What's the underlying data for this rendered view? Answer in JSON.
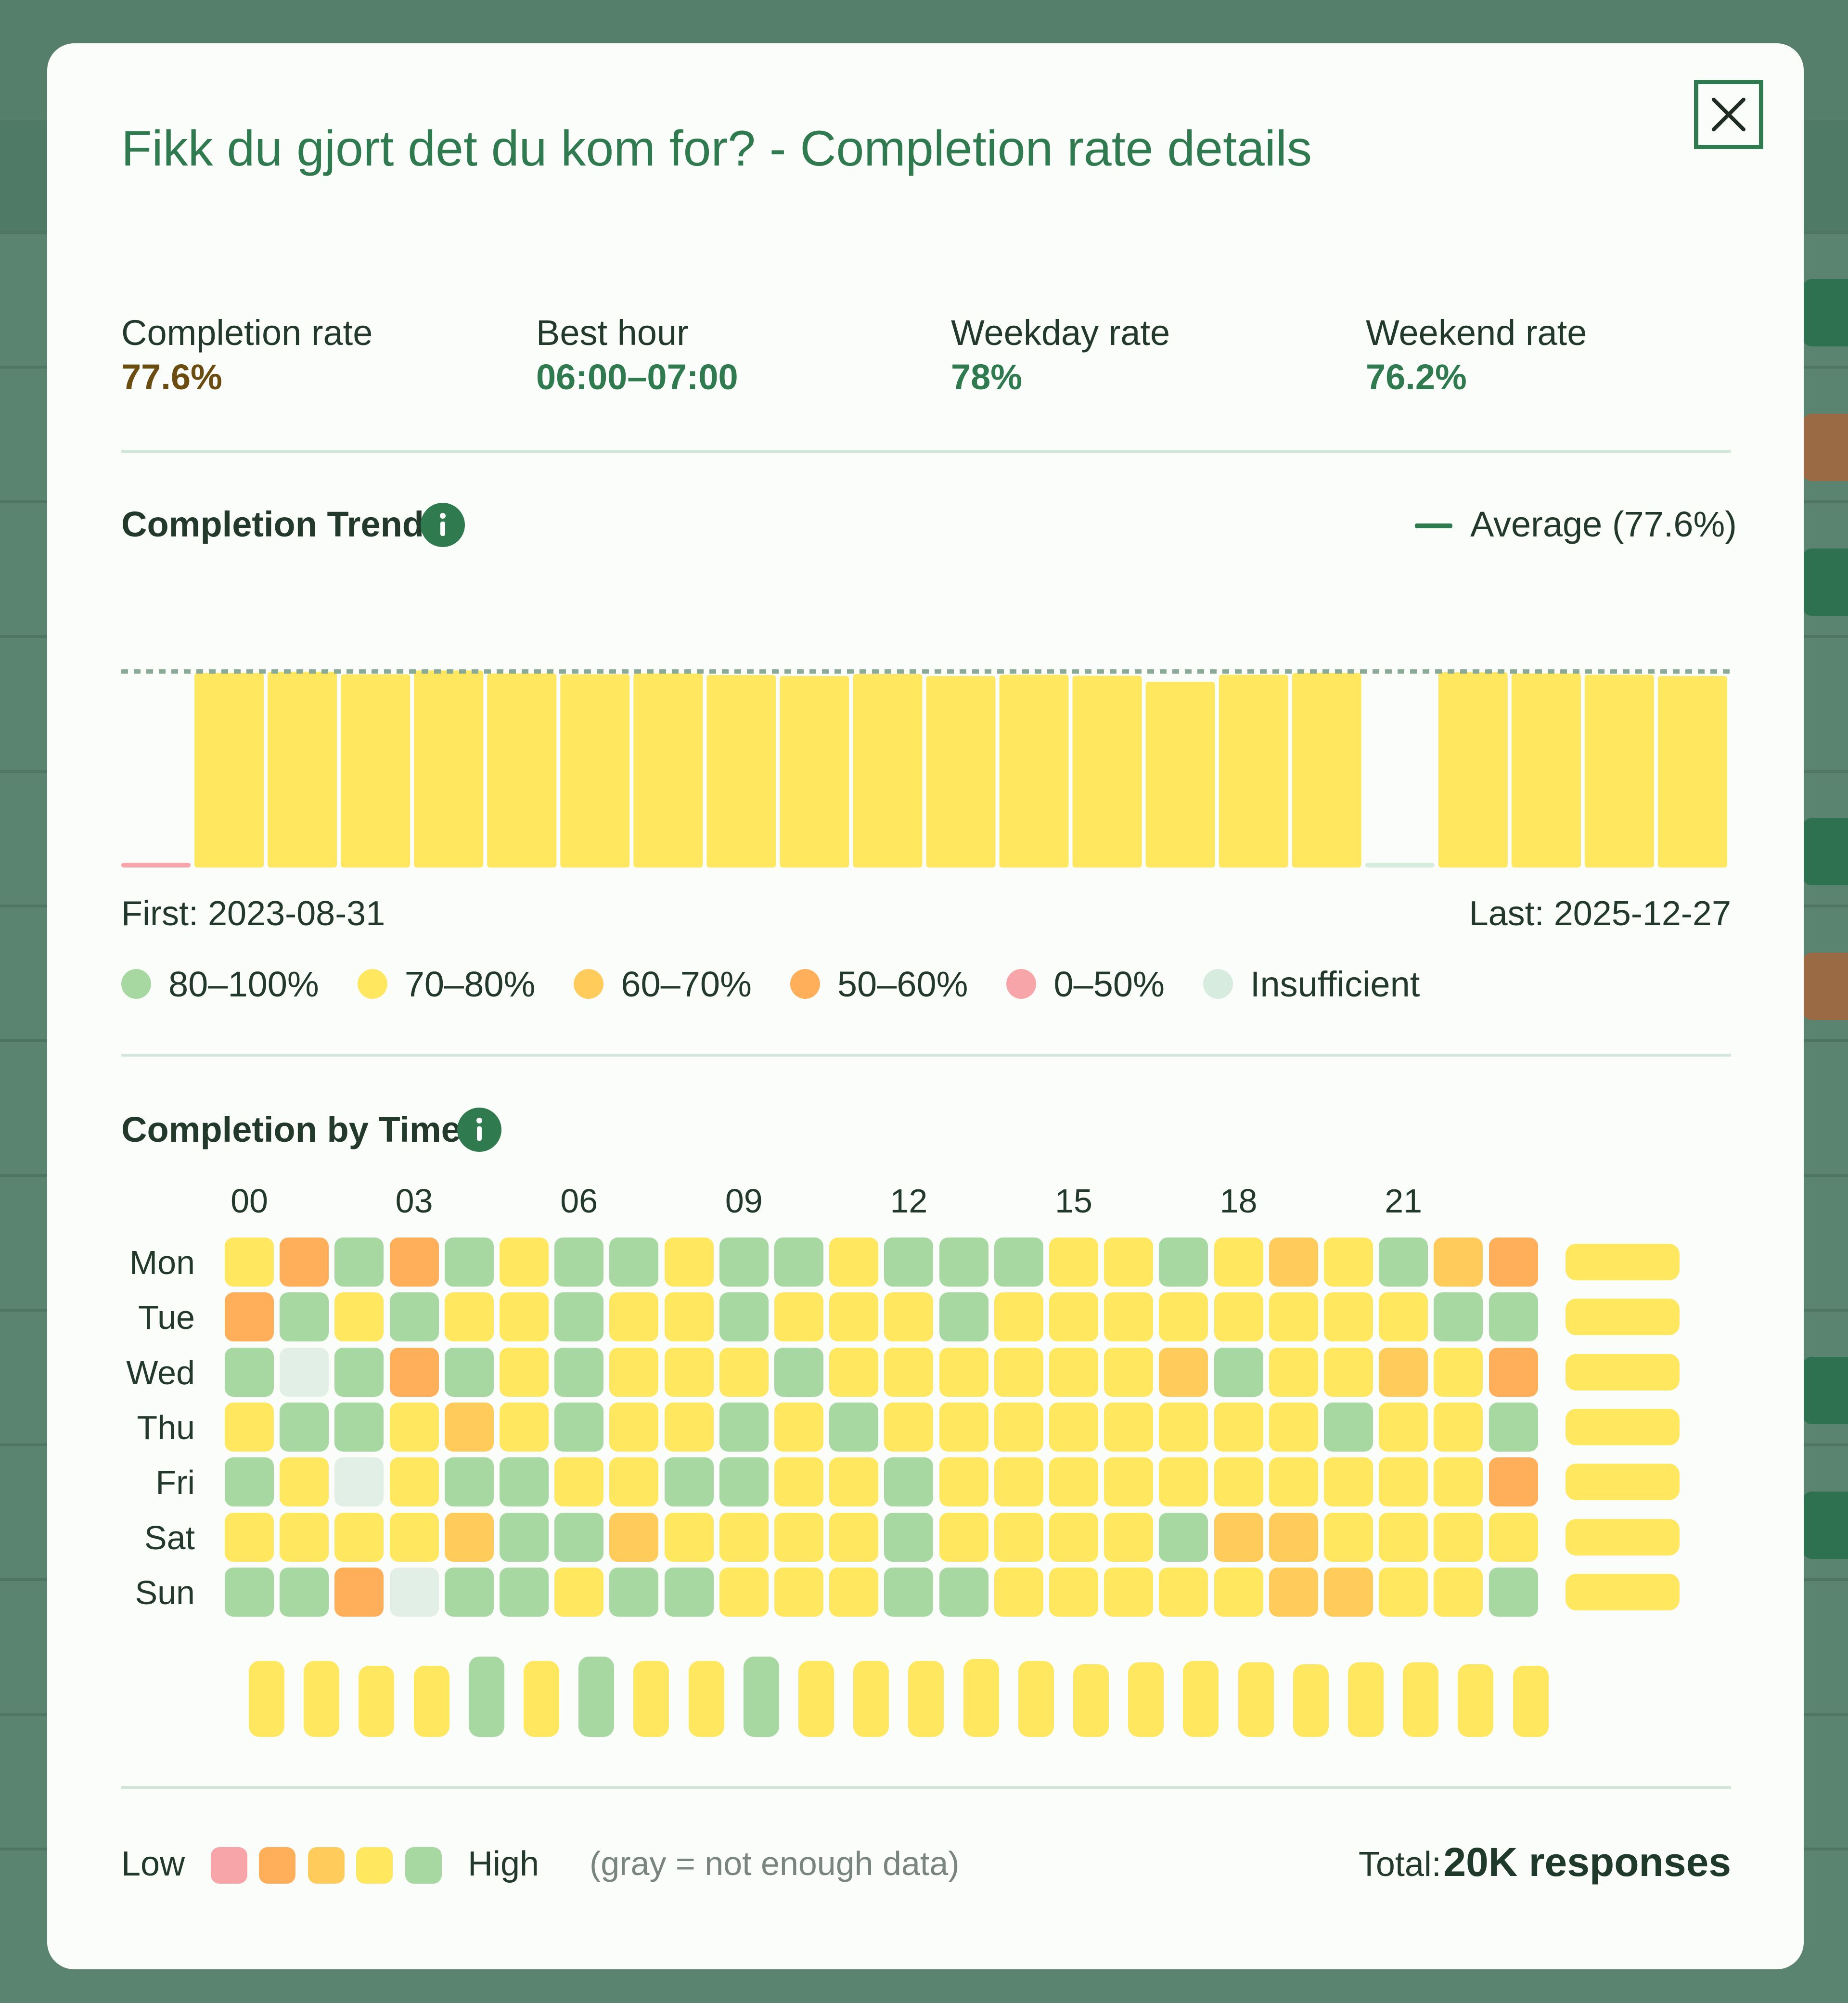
{
  "modal": {
    "title": "Fikk du gjort det du kom for? - Completion rate details",
    "close_icon": "close-icon"
  },
  "stats": [
    {
      "label": "Completion rate",
      "value": "77.6%",
      "color": "#6b4d12"
    },
    {
      "label": "Best hour",
      "value": "06:00–07:00",
      "color": "#2f7a4f"
    },
    {
      "label": "Weekday rate",
      "value": "78%",
      "color": "#2f7a4f"
    },
    {
      "label": "Weekend rate",
      "value": "76.2%",
      "color": "#2f7a4f"
    }
  ],
  "trend": {
    "title": "Completion Trend",
    "info_icon": "info-icon",
    "average_label": "Average (77.6%)",
    "first_label": "First: 2023-08-31",
    "last_label": "Last: 2025-12-27"
  },
  "chart_data": {
    "type": "bar",
    "average": 77.6,
    "ylim": [
      0,
      100
    ],
    "x_first": "2023-08-31",
    "x_last": "2025-12-27",
    "values": [
      1.2,
      77.0,
      77.5,
      76.5,
      78.0,
      76.8,
      76.5,
      76.8,
      76.2,
      75.8,
      76.6,
      75.8,
      76.3,
      75.9,
      73.5,
      76.3,
      77.0,
      1.3,
      77.3,
      76.8,
      76.3,
      75.8
    ],
    "bucket": [
      "0-50",
      "70-80",
      "70-80",
      "70-80",
      "70-80",
      "70-80",
      "70-80",
      "70-80",
      "70-80",
      "70-80",
      "70-80",
      "70-80",
      "70-80",
      "70-80",
      "70-80",
      "70-80",
      "70-80",
      "insufficient",
      "70-80",
      "70-80",
      "70-80",
      "70-80"
    ]
  },
  "legend": [
    {
      "label": "80–100%",
      "color": "#a8d8a2"
    },
    {
      "label": "70–80%",
      "color": "#ffe760"
    },
    {
      "label": "60–70%",
      "color": "#ffcc5c"
    },
    {
      "label": "50–60%",
      "color": "#ffae5a"
    },
    {
      "label": "0–50%",
      "color": "#f7a5a8"
    },
    {
      "label": "Insufficient",
      "color": "#d8ebdf"
    }
  ],
  "colors": {
    "high": "#a8d8a2",
    "mid": "#ffe760",
    "low_mid": "#ffcc5c",
    "low": "#ffae5a",
    "very_low": "#f7a5a8",
    "insufficient": "#e1efe6",
    "brand": "#2f7a4f"
  },
  "heatmap": {
    "title": "Completion by Time",
    "info_icon": "info-icon",
    "hour_labels": [
      "00",
      "03",
      "06",
      "09",
      "12",
      "15",
      "18",
      "21"
    ],
    "days": [
      "Mon",
      "Tue",
      "Wed",
      "Thu",
      "Fri",
      "Sat",
      "Sun"
    ],
    "cells": [
      [
        "Y",
        "O",
        "G",
        "O",
        "G",
        "Y",
        "G",
        "G",
        "Y",
        "G",
        "G",
        "Y",
        "G",
        "G",
        "G",
        "Y",
        "Y",
        "G",
        "Y",
        "A",
        "Y",
        "G",
        "A",
        "O"
      ],
      [
        "O",
        "G",
        "Y",
        "G",
        "Y",
        "Y",
        "G",
        "Y",
        "Y",
        "G",
        "Y",
        "Y",
        "Y",
        "G",
        "Y",
        "Y",
        "Y",
        "Y",
        "Y",
        "Y",
        "Y",
        "Y",
        "G",
        "G"
      ],
      [
        "G",
        "I",
        "G",
        "O",
        "G",
        "Y",
        "G",
        "Y",
        "Y",
        "Y",
        "G",
        "Y",
        "Y",
        "Y",
        "Y",
        "Y",
        "Y",
        "A",
        "G",
        "Y",
        "Y",
        "A",
        "Y",
        "O"
      ],
      [
        "Y",
        "G",
        "G",
        "Y",
        "A",
        "Y",
        "G",
        "Y",
        "Y",
        "G",
        "Y",
        "G",
        "Y",
        "Y",
        "Y",
        "Y",
        "Y",
        "Y",
        "Y",
        "Y",
        "G",
        "Y",
        "Y",
        "G"
      ],
      [
        "G",
        "Y",
        "I",
        "Y",
        "G",
        "G",
        "Y",
        "Y",
        "G",
        "G",
        "Y",
        "Y",
        "G",
        "Y",
        "Y",
        "Y",
        "Y",
        "Y",
        "Y",
        "Y",
        "Y",
        "Y",
        "Y",
        "O"
      ],
      [
        "Y",
        "Y",
        "Y",
        "Y",
        "A",
        "G",
        "G",
        "A",
        "Y",
        "Y",
        "Y",
        "Y",
        "G",
        "Y",
        "Y",
        "Y",
        "Y",
        "G",
        "A",
        "A",
        "Y",
        "Y",
        "Y",
        "Y"
      ],
      [
        "G",
        "G",
        "O",
        "I",
        "G",
        "G",
        "Y",
        "G",
        "G",
        "Y",
        "Y",
        "Y",
        "G",
        "G",
        "Y",
        "Y",
        "Y",
        "Y",
        "Y",
        "A",
        "A",
        "Y",
        "Y",
        "G"
      ]
    ],
    "row_summary": [
      "Y",
      "Y",
      "Y",
      "Y",
      "Y",
      "Y",
      "Y"
    ],
    "col_summary": [
      "Y",
      "Y",
      "Y",
      "Y",
      "G",
      "Y",
      "G",
      "Y",
      "Y",
      "G",
      "Y",
      "Y",
      "Y",
      "Y",
      "Y",
      "Y",
      "Y",
      "Y",
      "Y",
      "Y",
      "Y",
      "Y",
      "Y",
      "Y"
    ],
    "col_summary_levels": [
      0.92,
      0.92,
      0.86,
      0.86,
      0.97,
      0.92,
      0.97,
      0.92,
      0.92,
      0.97,
      0.92,
      0.92,
      0.92,
      0.94,
      0.92,
      0.88,
      0.9,
      0.92,
      0.9,
      0.88,
      0.9,
      0.9,
      0.88,
      0.86
    ]
  },
  "footer": {
    "low_label": "Low",
    "high_label": "High",
    "gray_note": "(gray = not enough data)",
    "total_label": "Total:",
    "total_value": "20K responses"
  }
}
